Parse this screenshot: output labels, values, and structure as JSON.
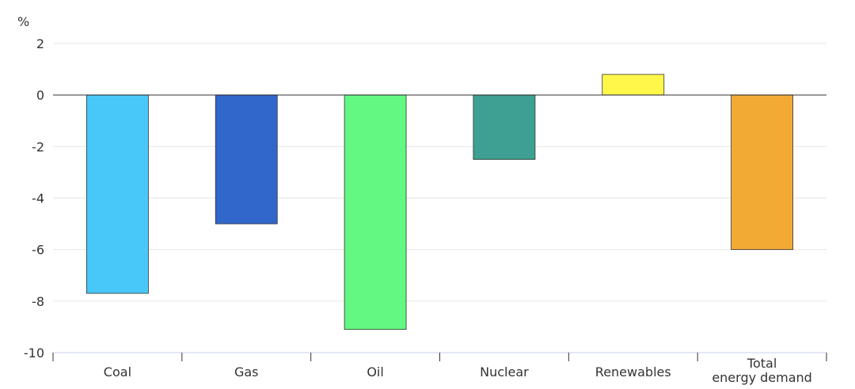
{
  "chart_data": {
    "type": "bar",
    "ylabel": "%",
    "ylim": [
      -10,
      2
    ],
    "yticks": [
      2,
      0,
      -2,
      -4,
      -6,
      -8,
      -10
    ],
    "categories": [
      [
        "Coal"
      ],
      [
        "Gas"
      ],
      [
        "Oil"
      ],
      [
        "Nuclear"
      ],
      [
        "Renewables"
      ],
      [
        "Total",
        "energy demand"
      ]
    ],
    "values": [
      -7.7,
      -5.0,
      -9.1,
      -2.5,
      0.8,
      -6.0
    ],
    "colors": [
      "#48C8F8",
      "#3166CB",
      "#62F881",
      "#3DA092",
      "#FFF84A",
      "#F2AA35"
    ],
    "grid": true,
    "legend": "none"
  }
}
